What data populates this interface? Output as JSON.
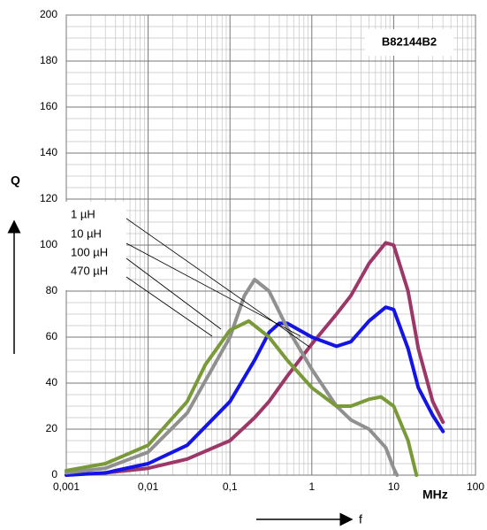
{
  "chart_data": {
    "type": "line",
    "annotation": "B82144B2",
    "y_label": "Q",
    "x_label": "MHz",
    "x_arrow_label": "f",
    "log_x": true,
    "grid": true,
    "xlim": [
      0.001,
      100
    ],
    "xticks": [
      {
        "value": 0.001,
        "label": "0,001"
      },
      {
        "value": 0.01,
        "label": "0,01"
      },
      {
        "value": 0.1,
        "label": "0,1"
      },
      1,
      10,
      100
    ],
    "ylim": [
      0,
      200
    ],
    "yticks": [
      0,
      20,
      40,
      60,
      80,
      100,
      120,
      140,
      160,
      180,
      200
    ],
    "series": [
      {
        "name": "1 µH",
        "color": "#9c3868",
        "x": [
          0.003,
          0.01,
          0.03,
          0.1,
          0.2,
          0.3,
          0.5,
          1,
          2,
          3,
          5,
          8,
          10,
          15,
          20,
          30,
          40
        ],
        "values": [
          1,
          3,
          7,
          15,
          25,
          32,
          43,
          57,
          70,
          78,
          92,
          101,
          100,
          80,
          55,
          32,
          23
        ]
      },
      {
        "name": "10 µH",
        "color": "#1414e6",
        "x": [
          0.001,
          0.003,
          0.01,
          0.03,
          0.1,
          0.2,
          0.3,
          0.4,
          0.5,
          1,
          2,
          3,
          5,
          8,
          10,
          15,
          20,
          30,
          40
        ],
        "values": [
          0,
          1,
          5,
          13,
          32,
          50,
          62,
          66,
          66,
          60,
          56,
          58,
          67,
          73,
          72,
          55,
          38,
          26,
          19
        ]
      },
      {
        "name": "100 µH",
        "color": "#909090",
        "x": [
          0.001,
          0.003,
          0.01,
          0.03,
          0.1,
          0.15,
          0.2,
          0.3,
          0.5,
          1,
          2,
          3,
          5,
          8,
          10,
          11
        ],
        "values": [
          1,
          3,
          10,
          27,
          60,
          78,
          85,
          80,
          64,
          46,
          30,
          24,
          20,
          12,
          3,
          0
        ]
      },
      {
        "name": "470 µH",
        "color": "#7a9a3a",
        "x": [
          0.001,
          0.003,
          0.01,
          0.03,
          0.05,
          0.1,
          0.17,
          0.3,
          0.5,
          1,
          2,
          3,
          5,
          7,
          10,
          15,
          19
        ],
        "values": [
          2,
          5,
          13,
          32,
          48,
          63,
          67,
          60,
          50,
          38,
          30,
          30,
          33,
          34,
          30,
          15,
          0
        ]
      }
    ]
  }
}
